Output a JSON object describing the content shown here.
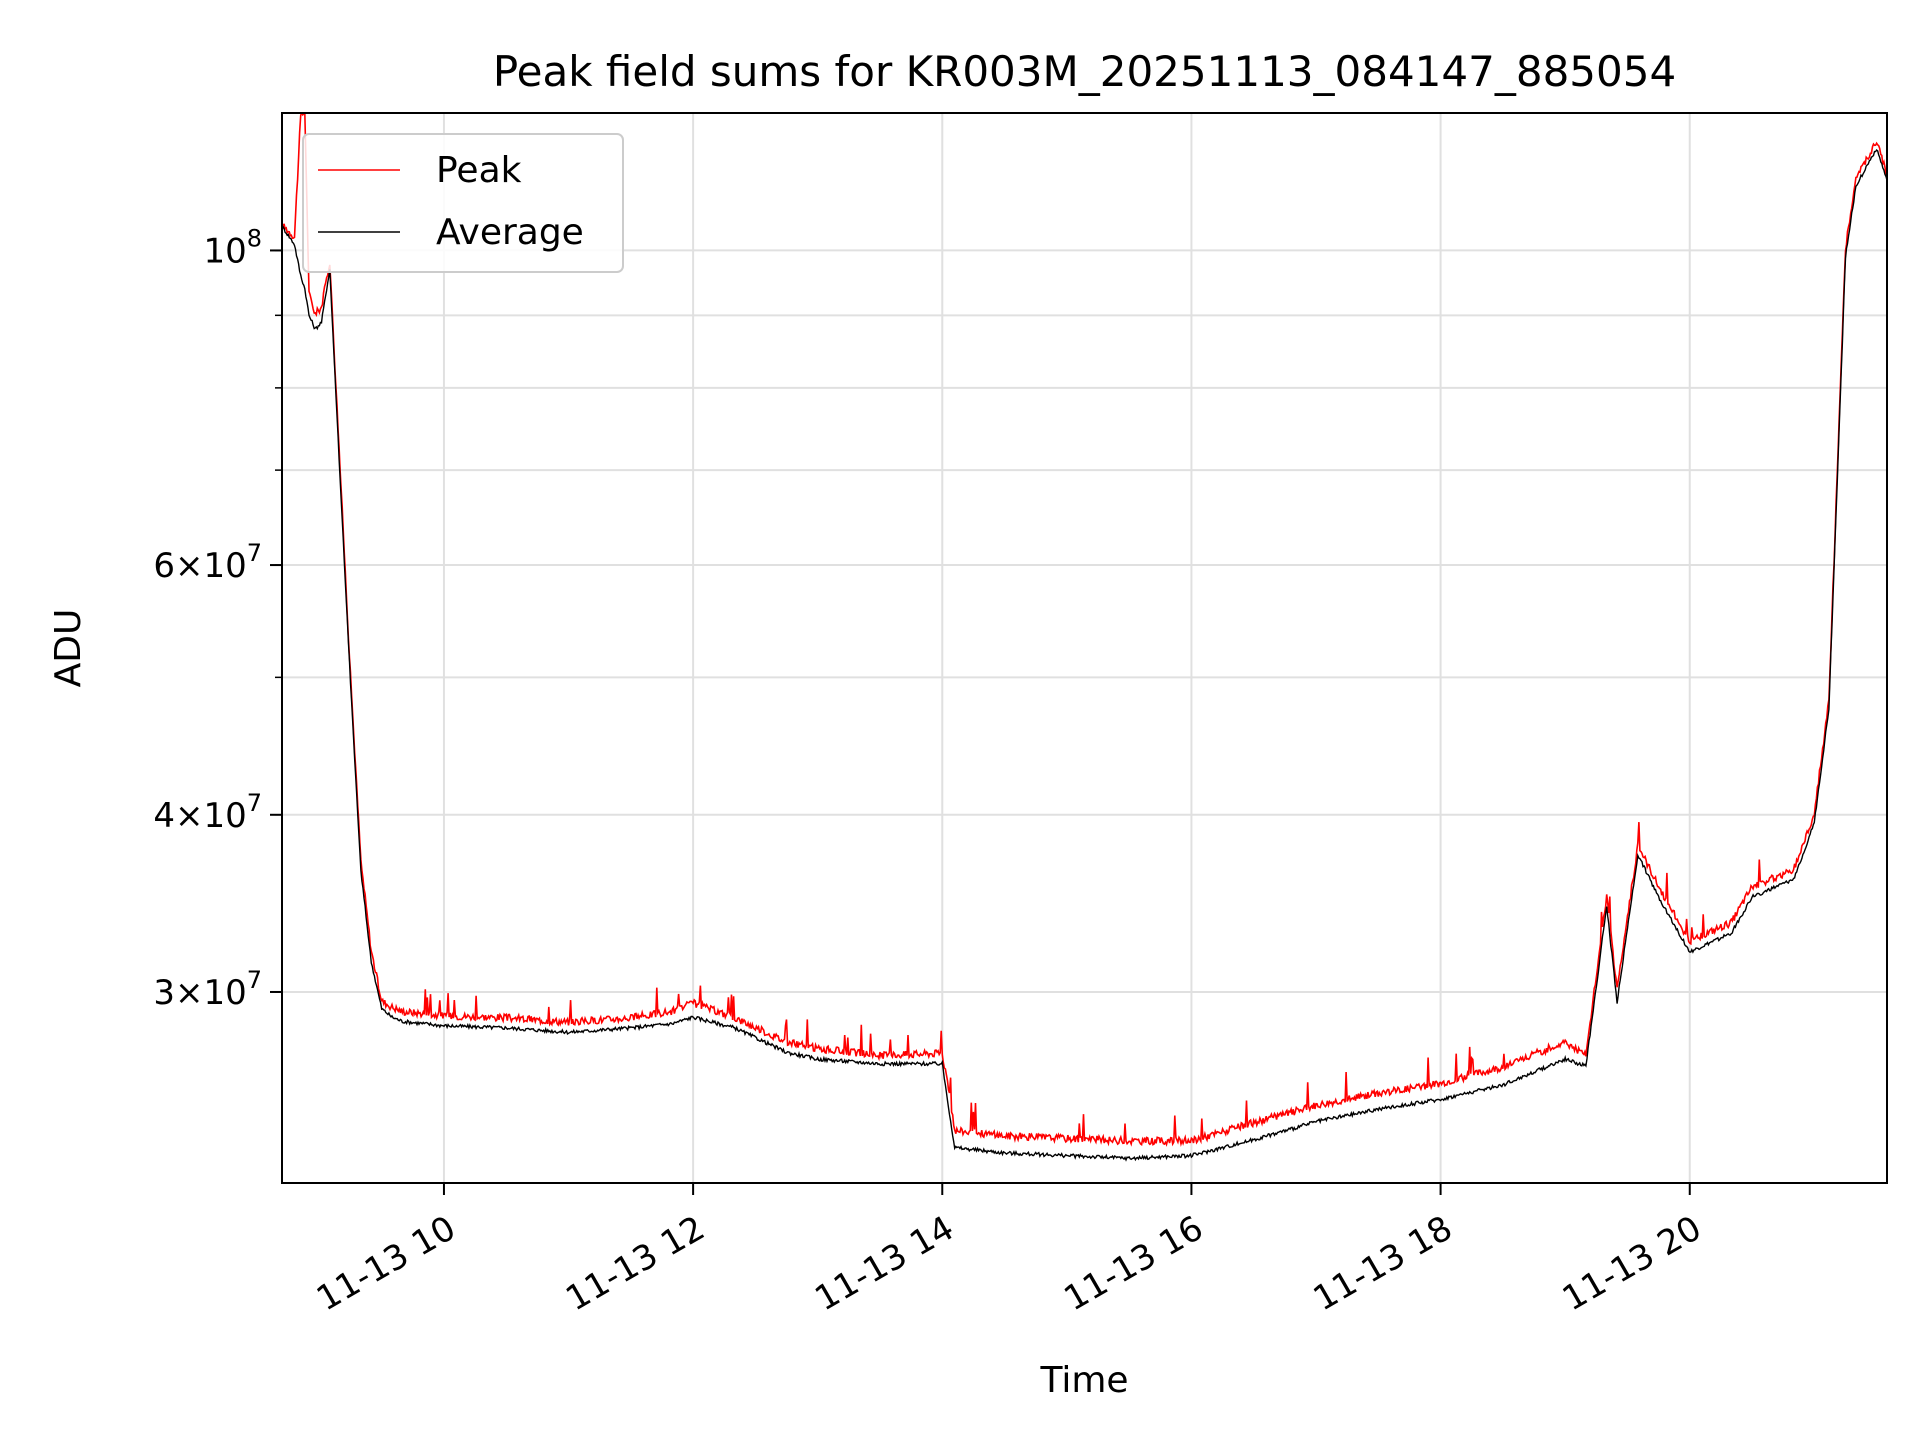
{
  "chart_data": {
    "type": "line",
    "title": "Peak field sums for KR003M_20251113_084147_885054",
    "xlabel": "Time",
    "ylabel": "ADU",
    "y_scale": "log",
    "grid": true,
    "legend_placement": "top-left",
    "xlim": [
      "2025-11-13 08:42",
      "2025-11-13 21:35"
    ],
    "ylim": [
      22000000,
      125000000
    ],
    "x_tick_labels": [
      "11-13 10",
      "11-13 12",
      "11-13 14",
      "11-13 16",
      "11-13 18",
      "11-13 20"
    ],
    "x_ticks": [
      "2025-11-13 10:00",
      "2025-11-13 12:00",
      "2025-11-13 14:00",
      "2025-11-13 16:00",
      "2025-11-13 18:00",
      "2025-11-13 20:00"
    ],
    "y_tick_labels": [
      {
        "value": 100000000,
        "mant": "",
        "base": "10",
        "exp": "8"
      },
      {
        "value": 60000000,
        "mant": "6",
        "base": "10",
        "exp": "7"
      },
      {
        "value": 40000000,
        "mant": "4",
        "base": "10",
        "exp": "7"
      },
      {
        "value": 30000000,
        "mant": "3",
        "base": "10",
        "exp": "7"
      }
    ],
    "series": [
      {
        "name": "Peak",
        "color": "#ff0000",
        "x": [
          "08:42",
          "08:48",
          "08:51",
          "08:53",
          "08:55",
          "08:58",
          "09:01",
          "09:05",
          "09:10",
          "09:15",
          "09:20",
          "09:25",
          "09:30",
          "09:35",
          "09:40",
          "09:50",
          "10:00",
          "10:30",
          "11:00",
          "11:30",
          "11:50",
          "12:00",
          "12:20",
          "12:45",
          "13:00",
          "13:30",
          "14:00",
          "14:05",
          "14:06",
          "14:30",
          "15:00",
          "15:30",
          "16:00",
          "16:30",
          "17:00",
          "17:30",
          "18:00",
          "18:30",
          "19:00",
          "19:10",
          "19:20",
          "19:25",
          "19:35",
          "19:45",
          "20:00",
          "20:20",
          "20:30",
          "20:50",
          "21:00",
          "21:07",
          "21:15",
          "21:20",
          "21:30",
          "21:35"
        ],
        "y": [
          104000000,
          102000000,
          124000000,
          125000000,
          93000000,
          90000000,
          91000000,
          98000000,
          70000000,
          50000000,
          37000000,
          32000000,
          29500000,
          29200000,
          29000000,
          28900000,
          28800000,
          28700000,
          28500000,
          28700000,
          29000000,
          29400000,
          28700000,
          27600000,
          27300000,
          27000000,
          27100000,
          24500000,
          23900000,
          23700000,
          23600000,
          23500000,
          23500000,
          24200000,
          24900000,
          25400000,
          25800000,
          26500000,
          27600000,
          27000000,
          35000000,
          30000000,
          38000000,
          35500000,
          32500000,
          33500000,
          35500000,
          36500000,
          40000000,
          48000000,
          100000000,
          112000000,
          119000000,
          113000000
        ]
      },
      {
        "name": "Average",
        "color": "#000000",
        "x": [
          "08:42",
          "08:48",
          "08:51",
          "08:53",
          "08:55",
          "08:58",
          "09:01",
          "09:05",
          "09:10",
          "09:15",
          "09:20",
          "09:25",
          "09:30",
          "09:35",
          "09:40",
          "09:50",
          "10:00",
          "10:30",
          "11:00",
          "11:30",
          "11:50",
          "12:00",
          "12:20",
          "12:45",
          "13:00",
          "13:30",
          "14:00",
          "14:05",
          "14:06",
          "14:30",
          "15:00",
          "15:30",
          "16:00",
          "16:30",
          "17:00",
          "17:30",
          "18:00",
          "18:30",
          "19:00",
          "19:10",
          "19:20",
          "19:25",
          "19:35",
          "19:45",
          "20:00",
          "20:20",
          "20:30",
          "20:50",
          "21:00",
          "21:07",
          "21:15",
          "21:20",
          "21:30",
          "21:35"
        ],
        "y": [
          104000000,
          101000000,
          96000000,
          94000000,
          90000000,
          88000000,
          89000000,
          97000000,
          69000000,
          49500000,
          36500000,
          31500000,
          29200000,
          28800000,
          28600000,
          28500000,
          28400000,
          28300000,
          28100000,
          28300000,
          28500000,
          28800000,
          28300000,
          27200000,
          26900000,
          26700000,
          26700000,
          23800000,
          23300000,
          23100000,
          23000000,
          22900000,
          23000000,
          23600000,
          24300000,
          24800000,
          25200000,
          25800000,
          26900000,
          26600000,
          34500000,
          29500000,
          37500000,
          35000000,
          32000000,
          33000000,
          35000000,
          36000000,
          39500000,
          47500000,
          99000000,
          111000000,
          118000000,
          112000000
        ]
      }
    ]
  }
}
